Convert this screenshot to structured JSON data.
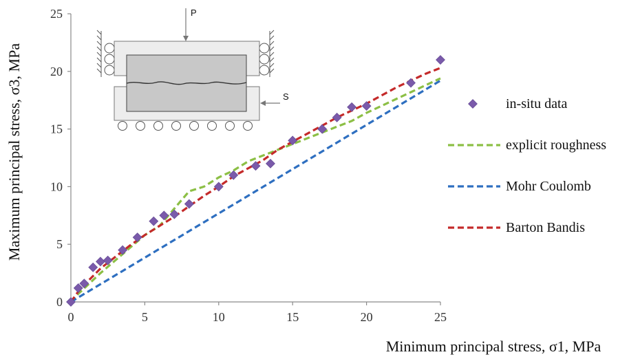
{
  "chart_data": {
    "type": "scatter",
    "title": "",
    "xlabel": "Minimum principal stress, σ1, MPa",
    "ylabel": "Maximum principal stress, σ3, MPa",
    "xlim": [
      0,
      25
    ],
    "ylim": [
      0,
      25
    ],
    "xticks": [
      0,
      5,
      10,
      15,
      20,
      25
    ],
    "yticks": [
      0,
      5,
      10,
      15,
      20,
      25
    ],
    "grid": false,
    "legend_position": "right",
    "series": [
      {
        "name": "in-situ data",
        "kind": "markers",
        "marker": "diamond",
        "color": "#7a5aaa",
        "x": [
          0,
          0.5,
          0.9,
          1.5,
          2,
          2.5,
          3.5,
          4.5,
          5.6,
          6.3,
          7,
          8,
          10,
          11,
          12.5,
          13.5,
          15,
          17,
          18,
          19,
          20,
          23,
          25
        ],
        "y": [
          0,
          1.2,
          1.6,
          3.0,
          3.5,
          3.6,
          4.5,
          5.6,
          7.0,
          7.5,
          7.6,
          8.5,
          10.0,
          11.0,
          11.8,
          12.0,
          14.0,
          15.0,
          16.0,
          16.9,
          17.0,
          19.0,
          21.0
        ]
      },
      {
        "name": "explicit roughness",
        "kind": "dashed-line",
        "color": "#8cbf45",
        "x": [
          0,
          0.5,
          1,
          2,
          3,
          4,
          5,
          6,
          7,
          8,
          9,
          10,
          11,
          12,
          13,
          14,
          15,
          16,
          17,
          18,
          19,
          20,
          21,
          22,
          23,
          24,
          25
        ],
        "y": [
          0,
          0.7,
          1.3,
          2.5,
          3.6,
          4.7,
          5.8,
          6.6,
          8.1,
          9.6,
          10.0,
          10.8,
          11.4,
          12.2,
          12.7,
          13.2,
          13.7,
          14.2,
          14.7,
          15.2,
          15.7,
          16.4,
          17.0,
          17.6,
          18.2,
          18.8,
          19.4
        ]
      },
      {
        "name": "Mohr Coulomb",
        "kind": "dashed-line",
        "color": "#2e6fc0",
        "x": [
          0,
          25
        ],
        "y": [
          0,
          19.2
        ]
      },
      {
        "name": "Barton Bandis",
        "kind": "dashed-line",
        "color": "#c42a2a",
        "x": [
          0,
          0.5,
          1,
          2,
          3,
          4,
          5,
          6,
          7,
          8,
          9,
          10,
          11,
          12,
          13,
          14,
          15,
          16,
          17,
          18,
          19,
          20,
          21,
          22,
          23,
          24,
          25
        ],
        "y": [
          0,
          0.9,
          1.6,
          2.9,
          3.9,
          4.9,
          5.8,
          6.6,
          7.4,
          8.3,
          9.2,
          10.0,
          10.9,
          11.6,
          12.3,
          13.2,
          13.9,
          14.6,
          15.3,
          16.0,
          16.6,
          17.2,
          17.9,
          18.6,
          19.2,
          19.8,
          20.3
        ]
      }
    ]
  },
  "inset": {
    "load_label": "P",
    "shear_label": "S"
  }
}
